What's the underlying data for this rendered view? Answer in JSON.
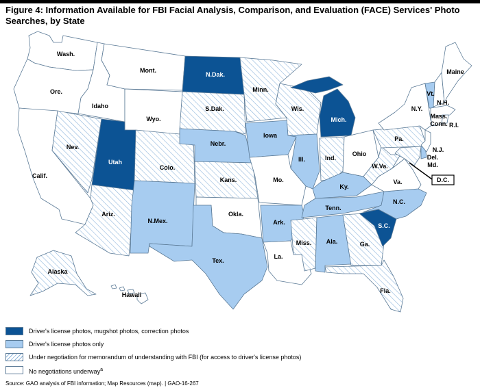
{
  "title": "Figure 4: Information Available for FBI Facial Analysis, Comparison, and Evaluation (FACE) Services' Photo Searches, by State",
  "states": {
    "wa": "Wash.",
    "or": "Ore.",
    "ca": "Calif.",
    "id": "Idaho",
    "nv": "Nev.",
    "mt": "Mont.",
    "wy": "Wyo.",
    "ut": "Utah",
    "az": "Ariz.",
    "co": "Colo.",
    "nm": "N.Mex.",
    "nd": "N.Dak.",
    "sd": "S.Dak.",
    "ne": "Nebr.",
    "ks": "Kans.",
    "ok": "Okla.",
    "tx": "Tex.",
    "mn": "Minn.",
    "ia": "Iowa",
    "mo": "Mo.",
    "ar": "Ark.",
    "la": "La.",
    "wi": "Wis.",
    "il": "Ill.",
    "mi": "Mich.",
    "in": "Ind.",
    "oh": "Ohio",
    "ky": "Ky.",
    "tn": "Tenn.",
    "ms": "Miss.",
    "al": "Ala.",
    "ga": "Ga.",
    "fl": "Fla.",
    "sc": "S.C.",
    "nc": "N.C.",
    "va": "Va.",
    "wv": "W.Va.",
    "md": "Md.",
    "de": "Del.",
    "pa": "Pa.",
    "nj": "N.J.",
    "ny": "N.Y.",
    "vt": "Vt.",
    "nh": "N.H.",
    "me": "Maine",
    "ma": "Mass.",
    "ct": "Conn.",
    "ri": "R.I.",
    "dc": "D.C.",
    "ak": "Alaska",
    "hi": "Hawaii"
  },
  "legend": {
    "dark": "Driver's license photos, mugshot photos, correction photos",
    "light": "Driver's license photos only",
    "hatch": "Under negotiation for memorandum of understanding with FBI (for access to driver's license photos)",
    "none": "No negotiations underway",
    "none_note": "a"
  },
  "colors": {
    "dark": "#0c5394",
    "light": "#a7ccf0",
    "hatch_line": "#8fb6dc",
    "none": "#ffffff",
    "border": "#5b7a96"
  },
  "source": "Source: GAO analysis of FBI information; Map Resources (map).  |  GAO-16-267"
}
